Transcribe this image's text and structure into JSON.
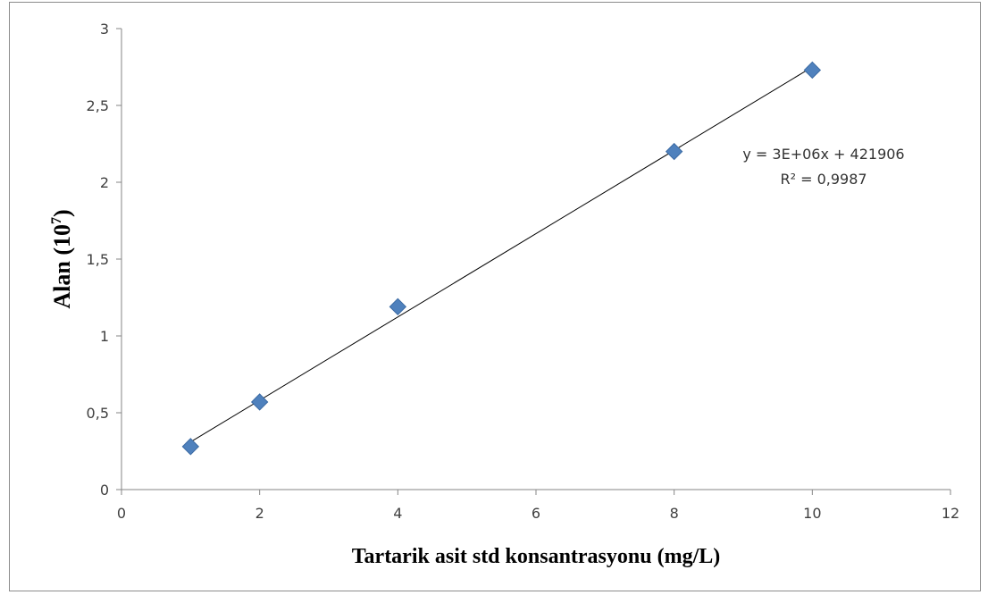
{
  "chart_data": {
    "type": "scatter",
    "title": "",
    "xlabel": "Tartarik asit std konsantrasyonu (mg/L)",
    "ylabel_main": "Alan (10",
    "ylabel_exp": "7",
    "ylabel_close": ")",
    "xlim": [
      0,
      12
    ],
    "ylim": [
      0,
      3
    ],
    "xticks": [
      "0",
      "2",
      "4",
      "6",
      "8",
      "10",
      "12"
    ],
    "yticks": [
      "0",
      "0,5",
      "1",
      "1,5",
      "2",
      "2,5",
      "3"
    ],
    "grid": false,
    "points": [
      {
        "x": 1,
        "y": 0.28
      },
      {
        "x": 2,
        "y": 0.57
      },
      {
        "x": 4,
        "y": 1.19
      },
      {
        "x": 8,
        "y": 2.2
      },
      {
        "x": 10,
        "y": 2.73
      }
    ],
    "trendline": {
      "type": "linear",
      "from": [
        1,
        0.31
      ],
      "to": [
        10,
        2.75
      ],
      "equation": "y = 3E+06x + 421906",
      "r2_label": "R² = 0,9987"
    },
    "colors": {
      "marker": "#4f81bd",
      "marker_stroke": "#3b6aa3",
      "trendline": "#000000",
      "axis": "#868686",
      "frame": "#8c8c8c"
    }
  }
}
